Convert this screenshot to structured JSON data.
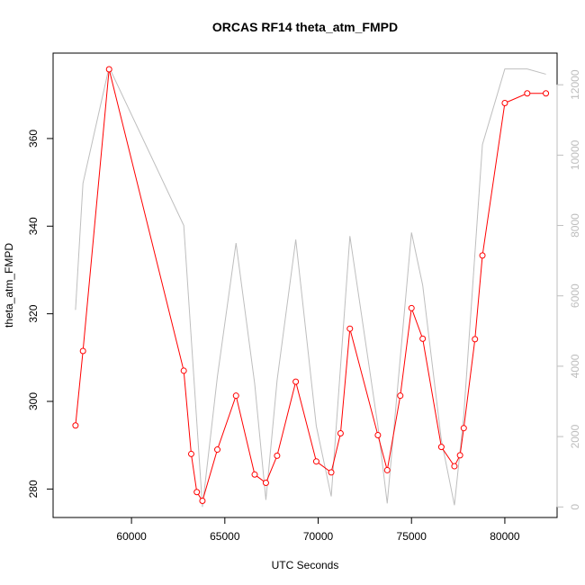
{
  "chart_data": {
    "type": "line",
    "title": "ORCAS RF14 theta_atm_FMPD",
    "xlabel": "UTC Seconds",
    "ylabel": "theta_atm_FMPD",
    "xlim": [
      55800,
      82800
    ],
    "ylim": [
      273.5,
      379.5
    ],
    "y2lim": [
      -300,
      12900
    ],
    "x_ticks": [
      60000,
      65000,
      70000,
      75000,
      80000
    ],
    "y_ticks": [
      280,
      300,
      320,
      340,
      360
    ],
    "y2_ticks": [
      0,
      2000,
      4000,
      6000,
      8000,
      10000,
      12000
    ],
    "colors": {
      "primary": "#ff0000",
      "secondary": "#bebebe",
      "axis": "#000000"
    },
    "series": [
      {
        "axis": "left",
        "style": "line+points",
        "x": [
          57000,
          57400,
          58800,
          62800,
          63200,
          63500,
          63800,
          64600,
          65600,
          66600,
          67200,
          67800,
          68800,
          69900,
          70700,
          71200,
          71700,
          73200,
          73700,
          74400,
          75000,
          75600,
          76600,
          77300,
          77600,
          77800,
          78400,
          78800,
          80000,
          81200,
          82200
        ],
        "y": [
          294.5,
          311.5,
          375.8,
          307.0,
          288.0,
          279.3,
          277.3,
          289.0,
          301.3,
          283.3,
          281.4,
          287.6,
          304.5,
          286.3,
          283.8,
          292.7,
          316.6,
          292.3,
          284.3,
          301.3,
          321.3,
          314.3,
          289.6,
          285.2,
          287.7,
          293.9,
          314.2,
          333.3,
          368.1,
          370.3,
          370.3
        ]
      },
      {
        "axis": "right",
        "style": "line",
        "x": [
          57000,
          57400,
          58800,
          62800,
          63800,
          64600,
          65600,
          66600,
          67200,
          67800,
          68800,
          69900,
          70700,
          71700,
          73200,
          73700,
          75000,
          75600,
          76600,
          77300,
          77800,
          78800,
          80000,
          81200,
          82200
        ],
        "y": [
          5600,
          9200,
          12500,
          8000,
          0,
          3700,
          7500,
          3500,
          200,
          3600,
          7600,
          2300,
          300,
          7700,
          2300,
          100,
          7800,
          6300,
          1900,
          50,
          2600,
          10300,
          12450,
          12450,
          12300
        ]
      }
    ]
  }
}
